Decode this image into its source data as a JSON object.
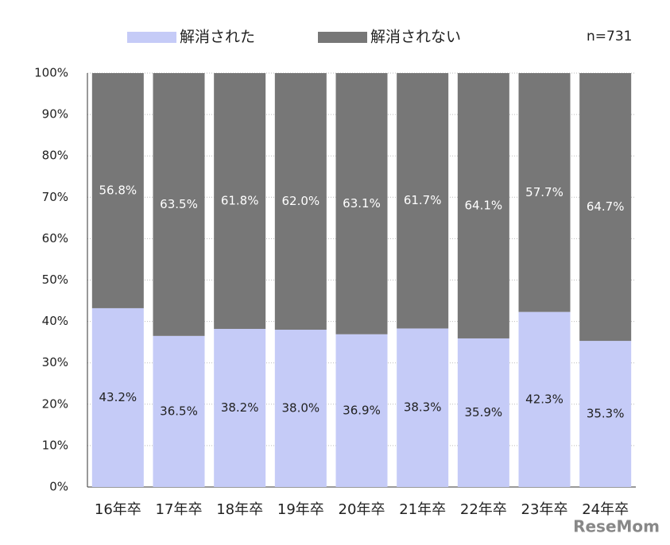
{
  "chart_data": {
    "type": "stacked_bar",
    "categories": [
      "16年卒",
      "17年卒",
      "18年卒",
      "19年卒",
      "20年卒",
      "21年卒",
      "22年卒",
      "23年卒",
      "24年卒"
    ],
    "series": [
      {
        "name": "解消された",
        "color": "#c5cbf7",
        "values": [
          43.2,
          36.5,
          38.2,
          38.0,
          36.9,
          38.3,
          35.9,
          42.3,
          35.3
        ],
        "value_labels": [
          "43.2%",
          "36.5%",
          "38.2%",
          "38.0%",
          "36.9%",
          "38.3%",
          "35.9%",
          "42.3%",
          "35.3%"
        ]
      },
      {
        "name": "解消されない",
        "color": "#777777",
        "values": [
          56.8,
          63.5,
          61.8,
          62.0,
          63.1,
          61.7,
          64.1,
          57.7,
          64.7
        ],
        "value_labels": [
          "56.8%",
          "63.5%",
          "61.8%",
          "62.0%",
          "63.1%",
          "61.7%",
          "64.1%",
          "57.7%",
          "64.7%"
        ]
      }
    ],
    "ylim": [
      0,
      100
    ],
    "yticks": [
      {
        "value": 0,
        "label": "0%"
      },
      {
        "value": 10,
        "label": "10%"
      },
      {
        "value": 20,
        "label": "20%"
      },
      {
        "value": 30,
        "label": "30%"
      },
      {
        "value": 40,
        "label": "40%"
      },
      {
        "value": 50,
        "label": "50%"
      },
      {
        "value": 60,
        "label": "60%"
      },
      {
        "value": 70,
        "label": "70%"
      },
      {
        "value": 80,
        "label": "80%"
      },
      {
        "value": 90,
        "label": "90%"
      },
      {
        "value": 100,
        "label": "100%"
      }
    ],
    "grid": true,
    "annotation": "n=731",
    "watermark": "ReseMom"
  }
}
